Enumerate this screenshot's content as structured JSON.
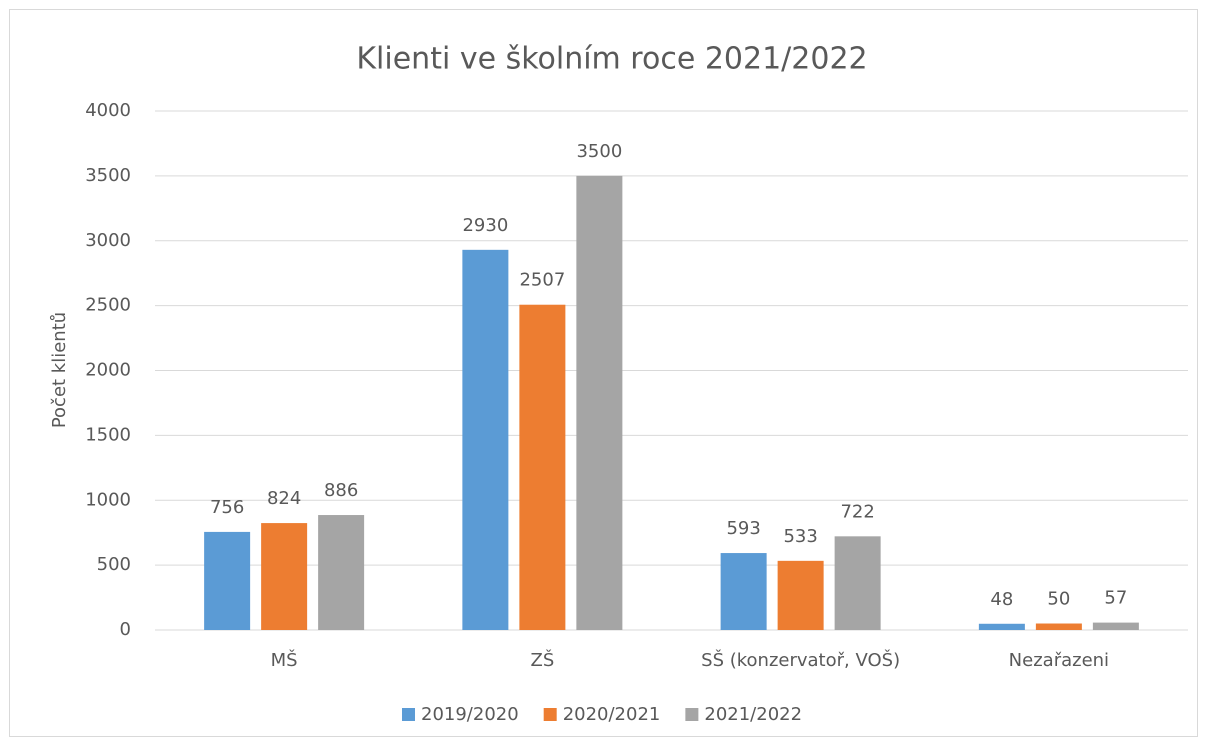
{
  "chart_data": {
    "type": "bar",
    "title": "Klienti ve školním roce 2021/2022",
    "y_label": "Počet klientů",
    "categories": [
      "MŠ",
      "ZŠ",
      "SŠ (konzervatoř, VOŠ)",
      "Nezařazeni"
    ],
    "series": [
      {
        "name": "2019/2020",
        "color": "#5b9bd5",
        "values": [
          756,
          2930,
          593,
          48
        ]
      },
      {
        "name": "2020/2021",
        "color": "#ed7d31",
        "values": [
          824,
          2507,
          533,
          50
        ]
      },
      {
        "name": "2021/2022",
        "color": "#a5a5a5",
        "values": [
          886,
          3500,
          722,
          57
        ]
      }
    ],
    "ylim": [
      0,
      4000
    ],
    "yticks": [
      0,
      500,
      1000,
      1500,
      2000,
      2500,
      3000,
      3500,
      4000
    ],
    "grid": true,
    "legend": "bottom"
  }
}
